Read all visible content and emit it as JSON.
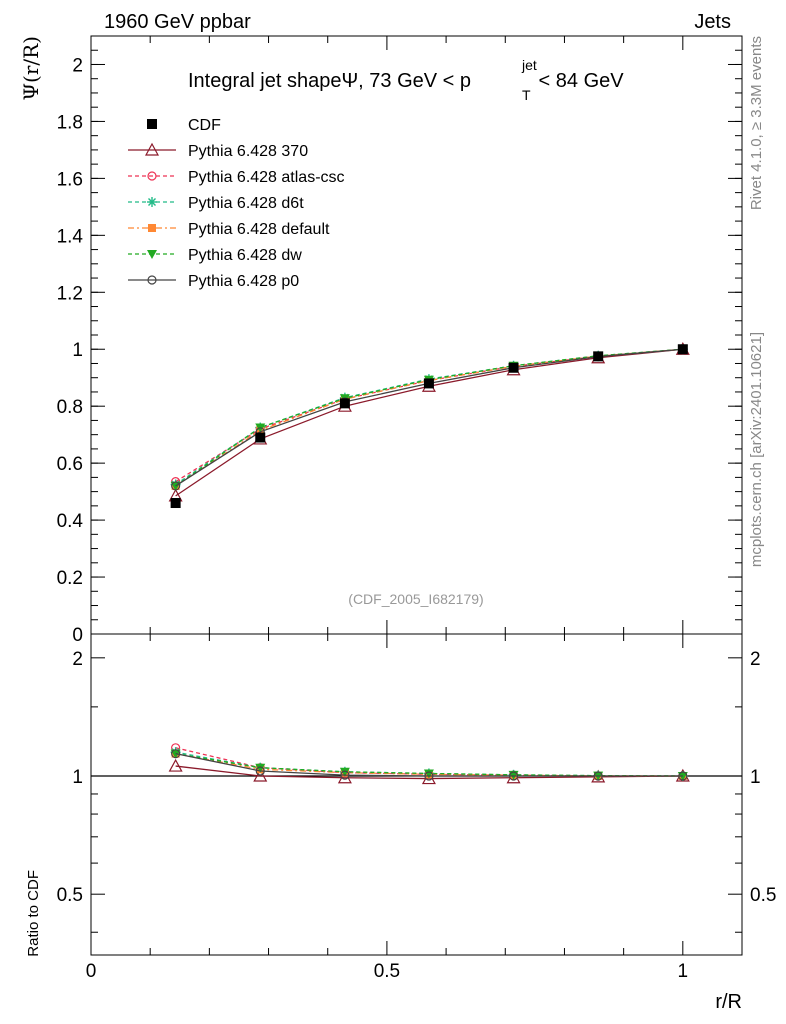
{
  "header": {
    "left": "1960 GeV ppbar",
    "right": "Jets"
  },
  "side": {
    "rivet": "Rivet 4.1.0, ≥ 3.3M events",
    "mcplots": "mcplots.cern.ch [arXiv:2401.10621]"
  },
  "chart_data": {
    "type": "line",
    "title_prefix": "Integral jet shapeΨ, 73 GeV < p",
    "title_sup": "jet",
    "title_sub": "T",
    "title_suffix": " < 84 GeV",
    "ylabel": "Ψ(r/R)",
    "ratio_ylabel": "Ratio to CDF",
    "xlabel": "r/R",
    "watermark": "(CDF_2005_I682179)",
    "xlim": [
      0,
      1.1
    ],
    "ylim": [
      0,
      2.1
    ],
    "ratio_ylim": [
      0.35,
      2.3
    ],
    "x_ticks": [
      "0",
      "0.5",
      "1"
    ],
    "y_ticks": [
      "0",
      "0.2",
      "0.4",
      "0.6",
      "0.8",
      "1",
      "1.2",
      "1.4",
      "1.6",
      "1.8",
      "2"
    ],
    "ratio_ticks": [
      "0.5",
      "1",
      "2"
    ],
    "x": [
      0.143,
      0.286,
      0.429,
      0.571,
      0.714,
      0.857,
      1.0
    ],
    "data": {
      "name": "CDF",
      "values": [
        0.46,
        0.69,
        0.81,
        0.88,
        0.935,
        0.975,
        1.0
      ]
    },
    "series": [
      {
        "name": "Pythia 6.428 370",
        "color": "#8b1a2b",
        "dash": "",
        "marker": "triangle-open",
        "values": [
          0.485,
          0.685,
          0.8,
          0.87,
          0.928,
          0.97,
          1.0
        ],
        "ratio": [
          1.06,
          1.0,
          0.99,
          0.985,
          0.99,
          0.995,
          1.0
        ]
      },
      {
        "name": "Pythia 6.428 atlas-csc",
        "color": "#ee3355",
        "dash": "4,3",
        "marker": "circle-open",
        "values": [
          0.535,
          0.72,
          0.825,
          0.89,
          0.94,
          0.975,
          1.0
        ],
        "ratio": [
          1.18,
          1.05,
          1.02,
          1.01,
          1.005,
          1.0,
          1.0
        ]
      },
      {
        "name": "Pythia 6.428 d6t",
        "color": "#22bb88",
        "dash": "4,3",
        "marker": "star",
        "values": [
          0.525,
          0.725,
          0.83,
          0.895,
          0.942,
          0.977,
          1.0
        ],
        "ratio": [
          1.15,
          1.05,
          1.025,
          1.015,
          1.007,
          1.002,
          1.0
        ]
      },
      {
        "name": "Pythia 6.428 default",
        "color": "#ff8833",
        "dash": "6,3,2,3",
        "marker": "square",
        "values": [
          0.52,
          0.715,
          0.825,
          0.89,
          0.94,
          0.976,
          1.0
        ],
        "ratio": [
          1.14,
          1.04,
          1.02,
          1.01,
          1.005,
          1.001,
          1.0
        ]
      },
      {
        "name": "Pythia 6.428 dw",
        "color": "#22aa22",
        "dash": "4,3",
        "marker": "triangle-down",
        "values": [
          0.52,
          0.725,
          0.828,
          0.893,
          0.942,
          0.977,
          1.0
        ],
        "ratio": [
          1.14,
          1.05,
          1.025,
          1.015,
          1.007,
          1.002,
          1.0
        ]
      },
      {
        "name": "Pythia 6.428 p0",
        "color": "#444444",
        "dash": "",
        "marker": "circle-open",
        "values": [
          0.52,
          0.71,
          0.815,
          0.88,
          0.935,
          0.974,
          1.0
        ],
        "ratio": [
          1.14,
          1.03,
          1.005,
          1.0,
          1.0,
          1.0,
          1.0
        ]
      }
    ]
  }
}
